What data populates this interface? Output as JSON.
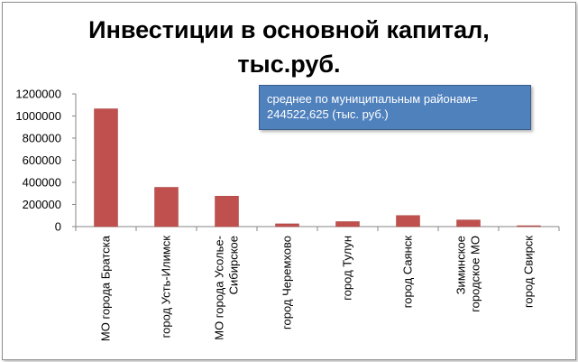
{
  "chart_data": {
    "type": "bar",
    "title": "Инвестиции в основной капитал,\nтыс.руб.",
    "xlabel": "",
    "ylabel": "",
    "ylim": [
      0,
      1200000
    ],
    "yticks": [
      "0",
      "200000",
      "400000",
      "600000",
      "800000",
      "1000000",
      "1200000"
    ],
    "grid": false,
    "legend": "none",
    "bar_color": "#c0504d",
    "categories": [
      "МО города Братска",
      "город Усть-Илимск",
      "МО города Усолье-Сибирское",
      "город Черемхово",
      "город Тулун",
      "город Саянск",
      "Зиминское городское МО",
      "город Свирск"
    ],
    "category_lines": [
      [
        "МО города Братска"
      ],
      [
        "город Усть-Илимск"
      ],
      [
        "МО города Усолье-",
        "Сибирское"
      ],
      [
        "город Черемхово"
      ],
      [
        "город Тулун"
      ],
      [
        "город Саянск"
      ],
      [
        "Зиминское",
        "городское МО"
      ],
      [
        "город Свирск"
      ]
    ],
    "values": [
      1065000,
      355000,
      275000,
      25000,
      45000,
      100000,
      60000,
      8000
    ],
    "annotation": {
      "line1": "среднее по муниципальным районам=",
      "line2": "244522,625  (тыс. руб.)"
    }
  }
}
